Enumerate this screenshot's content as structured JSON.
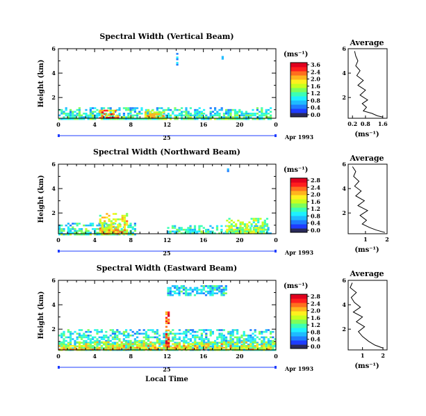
{
  "chart_data": [
    {
      "type": "heatmap",
      "title": "Spectral Width (Vertical Beam)",
      "ylabel": "Height (km)",
      "x_ticks": [
        "0",
        "4",
        "8",
        "12",
        "16",
        "20",
        "0"
      ],
      "y_ticks": [
        "6",
        "4",
        "2"
      ],
      "xlim": [
        0,
        24
      ],
      "ylim": [
        0.3,
        6.0
      ],
      "date_day": "25",
      "date_label": "Apr 1993",
      "colorbar": {
        "unit": "(ms⁻¹)",
        "ticks": [
          "3.6",
          "2.4",
          "2.0",
          "1.6",
          "1.2",
          "0.8",
          "0.4",
          "0.0"
        ]
      },
      "echo_regions": [
        {
          "x0": 0,
          "x1": 23.5,
          "y_top": 1.2,
          "intensity": "low-moderate"
        },
        {
          "x0": 4.5,
          "x1": 6.5,
          "y_top": 1.0,
          "intensity": "high"
        },
        {
          "x0": 9.5,
          "x1": 11.5,
          "y_top": 1.0,
          "intensity": "moderate-high"
        },
        {
          "x0": 13.0,
          "x1": 13.1,
          "y_top": 5.8,
          "y_bottom": 4.6,
          "intensity": "low"
        },
        {
          "x0": 18.0,
          "x1": 18.1,
          "y_top": 5.7,
          "y_bottom": 5.2,
          "intensity": "low"
        }
      ],
      "average_profile": {
        "title": "Average",
        "xlabel": "(ms⁻¹)",
        "x_ticks": [
          "0.2",
          "0.8",
          "1.6"
        ],
        "y_ticks": [
          "6",
          "4",
          "2"
        ],
        "xlim": [
          0.0,
          1.8
        ],
        "ylim": [
          0.3,
          6.0
        ],
        "x": [
          0.3,
          0.35,
          0.45,
          0.35,
          0.55,
          0.4,
          0.7,
          0.45,
          0.8,
          0.55,
          0.9,
          0.65,
          0.85,
          0.7,
          1.1,
          1.35,
          1.6
        ],
        "y": [
          5.8,
          5.4,
          5.0,
          4.6,
          4.2,
          3.8,
          3.4,
          3.0,
          2.6,
          2.2,
          1.8,
          1.5,
          1.2,
          0.9,
          0.7,
          0.5,
          0.4
        ]
      }
    },
    {
      "type": "heatmap",
      "title": "Spectral Width (Northward Beam)",
      "ylabel": "Height (km)",
      "x_ticks": [
        "0",
        "4",
        "8",
        "12",
        "16",
        "20",
        "0"
      ],
      "y_ticks": [
        "6",
        "4",
        "2"
      ],
      "xlim": [
        0,
        24
      ],
      "ylim": [
        0.3,
        6.0
      ],
      "date_day": "25",
      "date_label": "Apr 1993",
      "colorbar": {
        "unit": "(ms⁻¹)",
        "ticks": [
          "2.8",
          "2.4",
          "2.0",
          "1.6",
          "1.2",
          "0.8",
          "0.4",
          "0.0"
        ]
      },
      "echo_regions": [
        {
          "x0": 0,
          "x1": 8.5,
          "y_top": 1.2,
          "intensity": "low-moderate"
        },
        {
          "x0": 4.5,
          "x1": 7.5,
          "y_top": 2.0,
          "intensity": "moderate-high"
        },
        {
          "x0": 12.0,
          "x1": 23.5,
          "y_top": 1.0,
          "intensity": "low-moderate"
        },
        {
          "x0": 18.5,
          "x1": 23.0,
          "y_top": 1.6,
          "intensity": "moderate"
        },
        {
          "x0": 18.6,
          "x1": 18.7,
          "y_top": 5.8,
          "y_bottom": 5.2,
          "intensity": "low"
        }
      ],
      "average_profile": {
        "title": "Average",
        "xlabel": "(ms⁻¹)",
        "x_ticks": [
          "1",
          "2"
        ],
        "y_ticks": [
          "6",
          "4",
          "2"
        ],
        "xlim": [
          0.2,
          2.0
        ],
        "ylim": [
          0.3,
          6.0
        ],
        "x": [
          0.4,
          0.55,
          0.45,
          0.7,
          0.5,
          0.8,
          0.55,
          0.95,
          0.65,
          1.1,
          0.75,
          1.05,
          0.85,
          1.2,
          1.5,
          1.9
        ],
        "y": [
          5.8,
          5.4,
          5.0,
          4.6,
          4.2,
          3.8,
          3.4,
          3.0,
          2.6,
          2.2,
          1.8,
          1.4,
          1.1,
          0.8,
          0.6,
          0.4
        ]
      }
    },
    {
      "type": "heatmap",
      "title": "Spectral Width (Eastward Beam)",
      "ylabel": "Height (km)",
      "xlabel": "Local Time",
      "x_ticks": [
        "0",
        "4",
        "8",
        "12",
        "16",
        "20",
        "0"
      ],
      "y_ticks": [
        "6",
        "4",
        "2"
      ],
      "xlim": [
        0,
        24
      ],
      "ylim": [
        0.3,
        6.0
      ],
      "date_day": "25",
      "date_label": "Apr 1993",
      "colorbar": {
        "unit": "(ms⁻¹)",
        "ticks": [
          "2.8",
          "2.4",
          "2.0",
          "1.6",
          "1.2",
          "0.8",
          "0.4",
          "0.0"
        ]
      },
      "echo_regions": [
        {
          "x0": 0,
          "x1": 24,
          "y_top": 2.0,
          "intensity": "low-moderate"
        },
        {
          "x0": 0,
          "x1": 24,
          "y_top": 1.0,
          "intensity": "moderate-high"
        },
        {
          "x0": 12.0,
          "x1": 18.5,
          "y_top": 5.6,
          "y_bottom": 4.8,
          "intensity": "low"
        },
        {
          "x0": 11.8,
          "x1": 12.2,
          "y_top": 3.6,
          "y_bottom": 0.5,
          "intensity": "high"
        }
      ],
      "average_profile": {
        "title": "Average",
        "xlabel": "(ms⁻¹)",
        "x_ticks": [
          "1",
          "2"
        ],
        "y_ticks": [
          "6",
          "4",
          "2"
        ],
        "xlim": [
          0.3,
          2.2
        ],
        "ylim": [
          0.3,
          6.0
        ],
        "x": [
          0.5,
          0.4,
          0.7,
          0.45,
          0.6,
          0.9,
          0.55,
          1.0,
          0.7,
          1.1,
          0.8,
          1.0,
          1.3,
          1.6,
          2.0
        ],
        "y": [
          5.8,
          5.4,
          5.0,
          4.6,
          4.2,
          3.8,
          3.4,
          3.0,
          2.6,
          2.2,
          1.8,
          1.4,
          1.0,
          0.7,
          0.45
        ]
      }
    }
  ],
  "colors": {
    "scale": [
      "#2a2a5a",
      "#1e3cff",
      "#1e7dff",
      "#1ebbff",
      "#1ef0ff",
      "#3cffb4",
      "#7dff5a",
      "#c8ff1e",
      "#fff01e",
      "#ffb41e",
      "#ff6e1e",
      "#ff1e1e",
      "#e0001e"
    ]
  }
}
